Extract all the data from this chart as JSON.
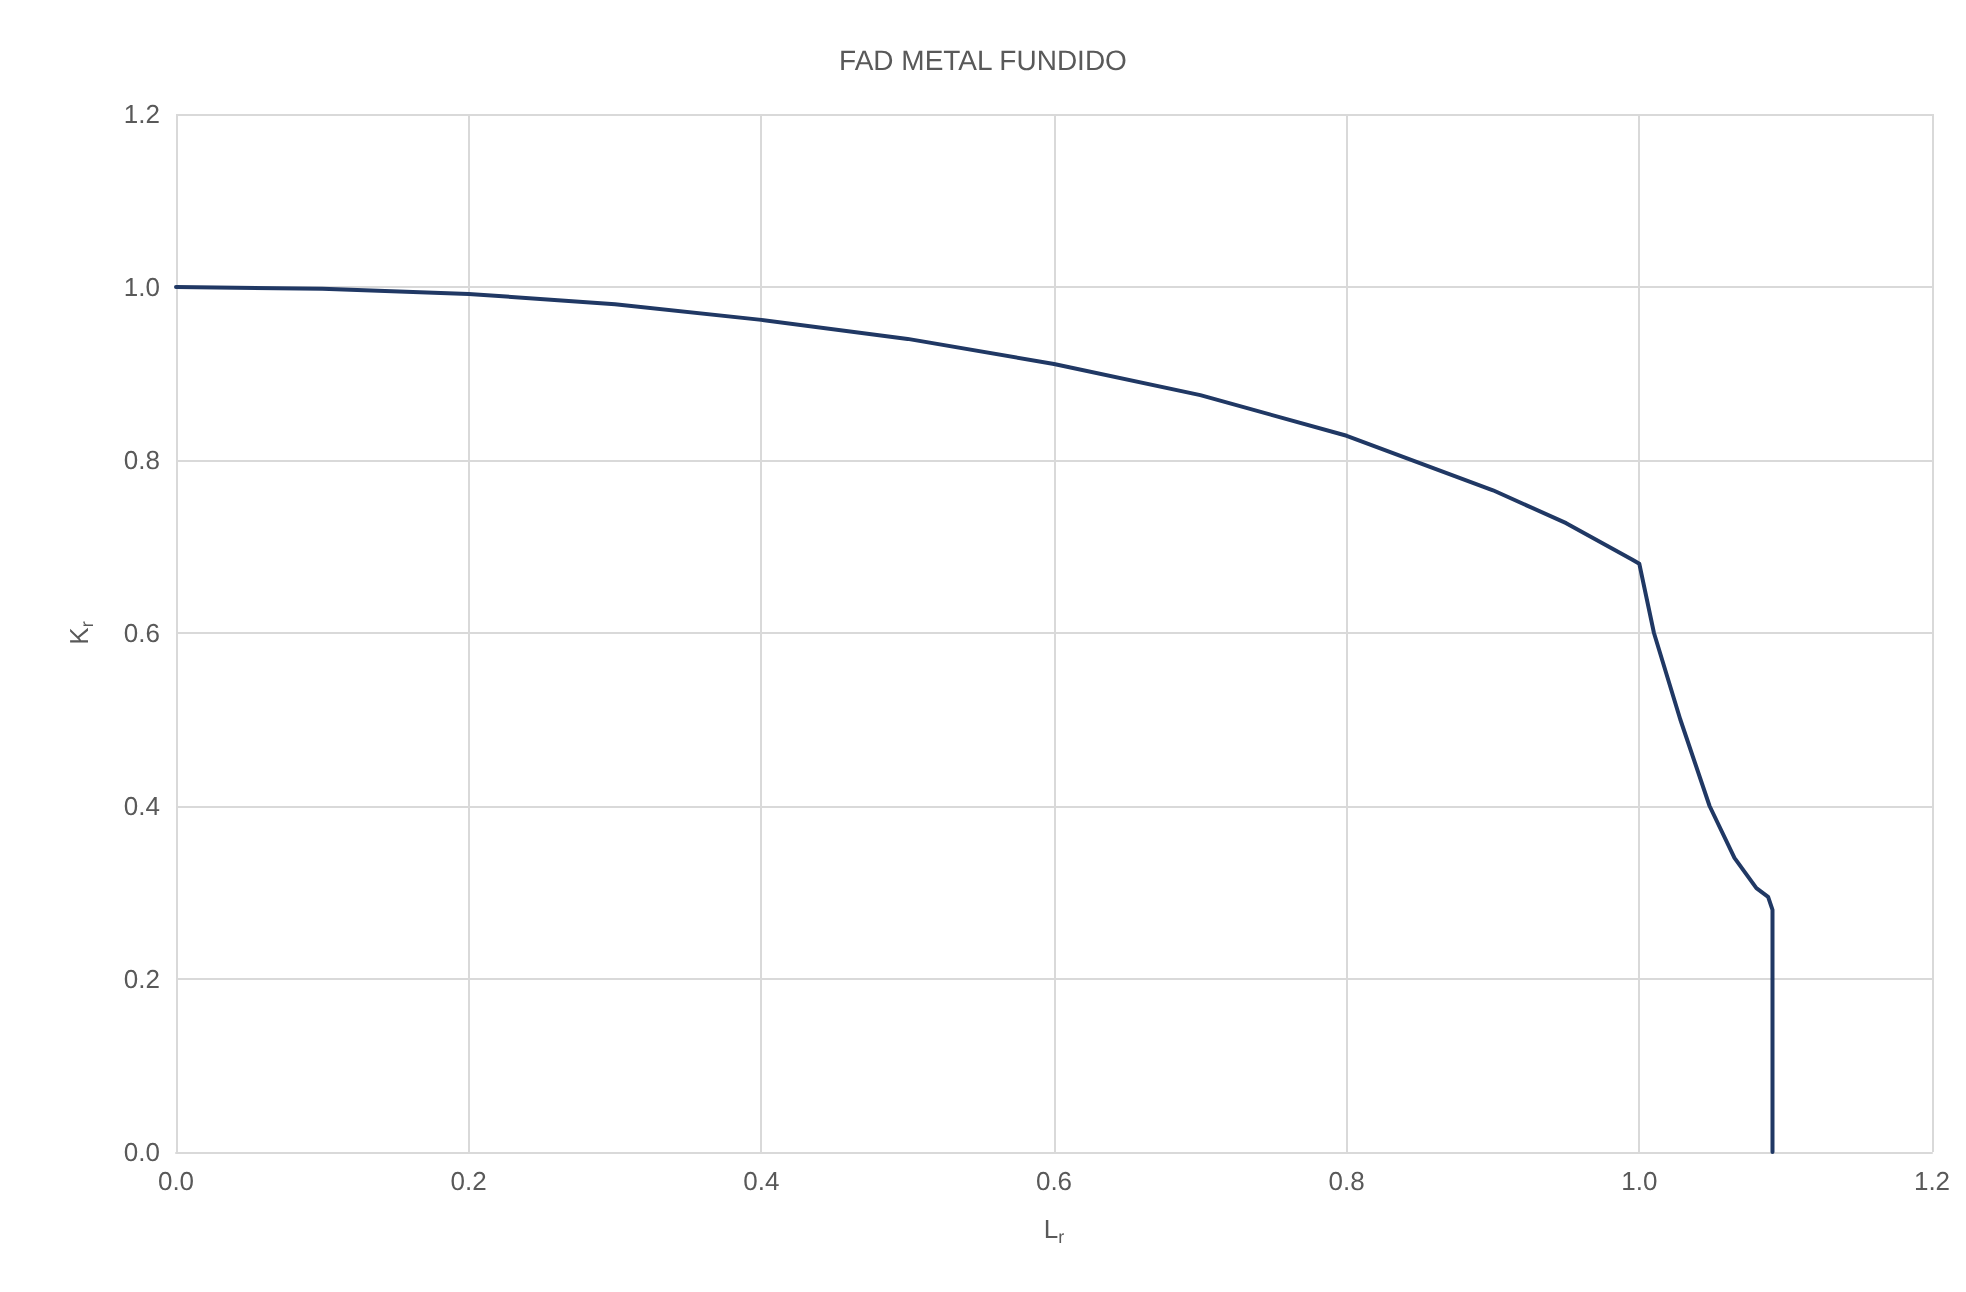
{
  "chart_data": {
    "type": "line",
    "title": "FAD METAL FUNDIDO",
    "xlabel": "L$_{r}$",
    "ylabel": "K$_{r}$",
    "x": [
      0,
      0.1,
      0.2,
      0.3,
      0.4,
      0.5,
      0.6,
      0.7,
      0.8,
      0.9,
      0.95,
      0.995,
      1.0,
      1.01,
      1.028,
      1.048,
      1.065,
      1.08,
      1.088,
      1.091,
      1.091
    ],
    "series": [
      {
        "color": "#203864",
        "values": [
          1.0,
          0.998,
          0.992,
          0.98,
          0.962,
          0.94,
          0.911,
          0.875,
          0.828,
          0.765,
          0.727,
          0.685,
          0.68,
          0.6,
          0.5,
          0.4,
          0.34,
          0.305,
          0.295,
          0.28,
          0
        ]
      }
    ],
    "xlim": [
      0,
      1.2
    ],
    "xticks": [
      {
        "value": 0,
        "label": "0.0"
      },
      0.2,
      0.4,
      0.6,
      0.8,
      {
        "value": 1,
        "label": "1.0"
      },
      1.2
    ],
    "ylim": [
      0,
      1.2
    ],
    "yticks": [
      {
        "value": 0,
        "label": "0.0"
      },
      0.2,
      0.4,
      0.6,
      0.8,
      {
        "value": 1,
        "label": "1.0"
      },
      1.2
    ],
    "grid": true,
    "marker": "none",
    "line_style": "solid"
  }
}
